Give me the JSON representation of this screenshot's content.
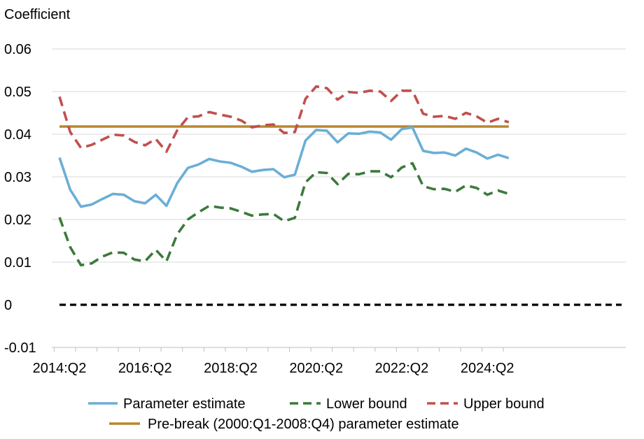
{
  "chart_data": {
    "type": "line",
    "ylabel": "Coefficient",
    "ylim": [
      -0.01,
      0.06
    ],
    "yticks": [
      {
        "value": -0.01,
        "label": "-0.01"
      },
      {
        "value": 0,
        "label": "0"
      },
      {
        "value": 0.01,
        "label": "0.01"
      },
      {
        "value": 0.02,
        "label": "0.02"
      },
      {
        "value": 0.03,
        "label": "0.03"
      },
      {
        "value": 0.04,
        "label": "0.04"
      },
      {
        "value": 0.05,
        "label": "0.05"
      },
      {
        "value": 0.06,
        "label": "0.06"
      }
    ],
    "x": [
      "2014:Q2",
      "2014:Q3",
      "2014:Q4",
      "2015:Q1",
      "2015:Q2",
      "2015:Q3",
      "2015:Q4",
      "2016:Q1",
      "2016:Q2",
      "2016:Q3",
      "2016:Q4",
      "2017:Q1",
      "2017:Q2",
      "2017:Q3",
      "2017:Q4",
      "2018:Q1",
      "2018:Q2",
      "2018:Q3",
      "2018:Q4",
      "2019:Q1",
      "2019:Q2",
      "2019:Q3",
      "2019:Q4",
      "2020:Q1",
      "2020:Q2",
      "2020:Q3",
      "2020:Q4",
      "2021:Q1",
      "2021:Q2",
      "2021:Q3",
      "2021:Q4",
      "2022:Q1",
      "2022:Q2",
      "2022:Q3",
      "2022:Q4",
      "2023:Q1",
      "2023:Q2",
      "2023:Q3",
      "2023:Q4",
      "2024:Q1",
      "2024:Q2",
      "2024:Q3",
      "2024:Q4"
    ],
    "xtick_labels": [
      "2014:Q2",
      "2016:Q2",
      "2018:Q2",
      "2020:Q2",
      "2022:Q2",
      "2024:Q2"
    ],
    "grid": "horizontal",
    "legend_position": "bottom",
    "series": [
      {
        "name": "Parameter estimate",
        "color": "#6BAED6",
        "style": "solid",
        "values": [
          0.0345,
          0.027,
          0.023,
          0.0235,
          0.0248,
          0.026,
          0.0258,
          0.0243,
          0.0238,
          0.0258,
          0.0232,
          0.0285,
          0.0321,
          0.0329,
          0.0342,
          0.0336,
          0.0333,
          0.0324,
          0.0312,
          0.0316,
          0.0318,
          0.0299,
          0.0305,
          0.0385,
          0.041,
          0.0408,
          0.0381,
          0.0402,
          0.0401,
          0.0406,
          0.0404,
          0.0387,
          0.0412,
          0.0416,
          0.0361,
          0.0356,
          0.0357,
          0.035,
          0.0366,
          0.0357,
          0.0343,
          0.0352,
          0.0344
        ]
      },
      {
        "name": "Lower bound",
        "color": "#3C7A3C",
        "style": "dashed",
        "values": [
          0.0205,
          0.0135,
          0.0093,
          0.0097,
          0.0113,
          0.0123,
          0.0122,
          0.0106,
          0.0102,
          0.0129,
          0.0102,
          0.0165,
          0.02,
          0.0217,
          0.0232,
          0.0228,
          0.0226,
          0.0218,
          0.0209,
          0.0212,
          0.0213,
          0.0196,
          0.0204,
          0.0287,
          0.0311,
          0.0309,
          0.0283,
          0.0307,
          0.0306,
          0.0313,
          0.0313,
          0.0299,
          0.0322,
          0.0332,
          0.0278,
          0.0271,
          0.0272,
          0.0265,
          0.028,
          0.0274,
          0.0258,
          0.0268,
          0.026
        ]
      },
      {
        "name": "Upper bound",
        "color": "#C0504D",
        "style": "dashed",
        "values": [
          0.0488,
          0.0405,
          0.0368,
          0.0375,
          0.0387,
          0.0399,
          0.0397,
          0.0382,
          0.0374,
          0.0389,
          0.0359,
          0.0409,
          0.044,
          0.0442,
          0.0452,
          0.0446,
          0.0441,
          0.0432,
          0.0416,
          0.0421,
          0.0423,
          0.0403,
          0.0405,
          0.0483,
          0.0512,
          0.0508,
          0.0481,
          0.0499,
          0.0497,
          0.0502,
          0.05,
          0.0478,
          0.0502,
          0.0502,
          0.0448,
          0.0441,
          0.0443,
          0.0436,
          0.045,
          0.0442,
          0.0427,
          0.0436,
          0.0428
        ]
      },
      {
        "name": "Pre-break (2000:Q1-2008:Q4) parameter estimate",
        "color": "#B8862B",
        "style": "solid",
        "values": [
          0.0418,
          0.0418,
          0.0418,
          0.0418,
          0.0418,
          0.0418,
          0.0418,
          0.0418,
          0.0418,
          0.0418,
          0.0418,
          0.0418,
          0.0418,
          0.0418,
          0.0418,
          0.0418,
          0.0418,
          0.0418,
          0.0418,
          0.0418,
          0.0418,
          0.0418,
          0.0418,
          0.0418,
          0.0418,
          0.0418,
          0.0418,
          0.0418,
          0.0418,
          0.0418,
          0.0418,
          0.0418,
          0.0418,
          0.0418,
          0.0418,
          0.0418,
          0.0418,
          0.0418,
          0.0418,
          0.0418,
          0.0418,
          0.0418,
          0.0418
        ]
      }
    ],
    "reference_line": {
      "value": 0,
      "color": "#000000",
      "style": "dashed"
    }
  }
}
